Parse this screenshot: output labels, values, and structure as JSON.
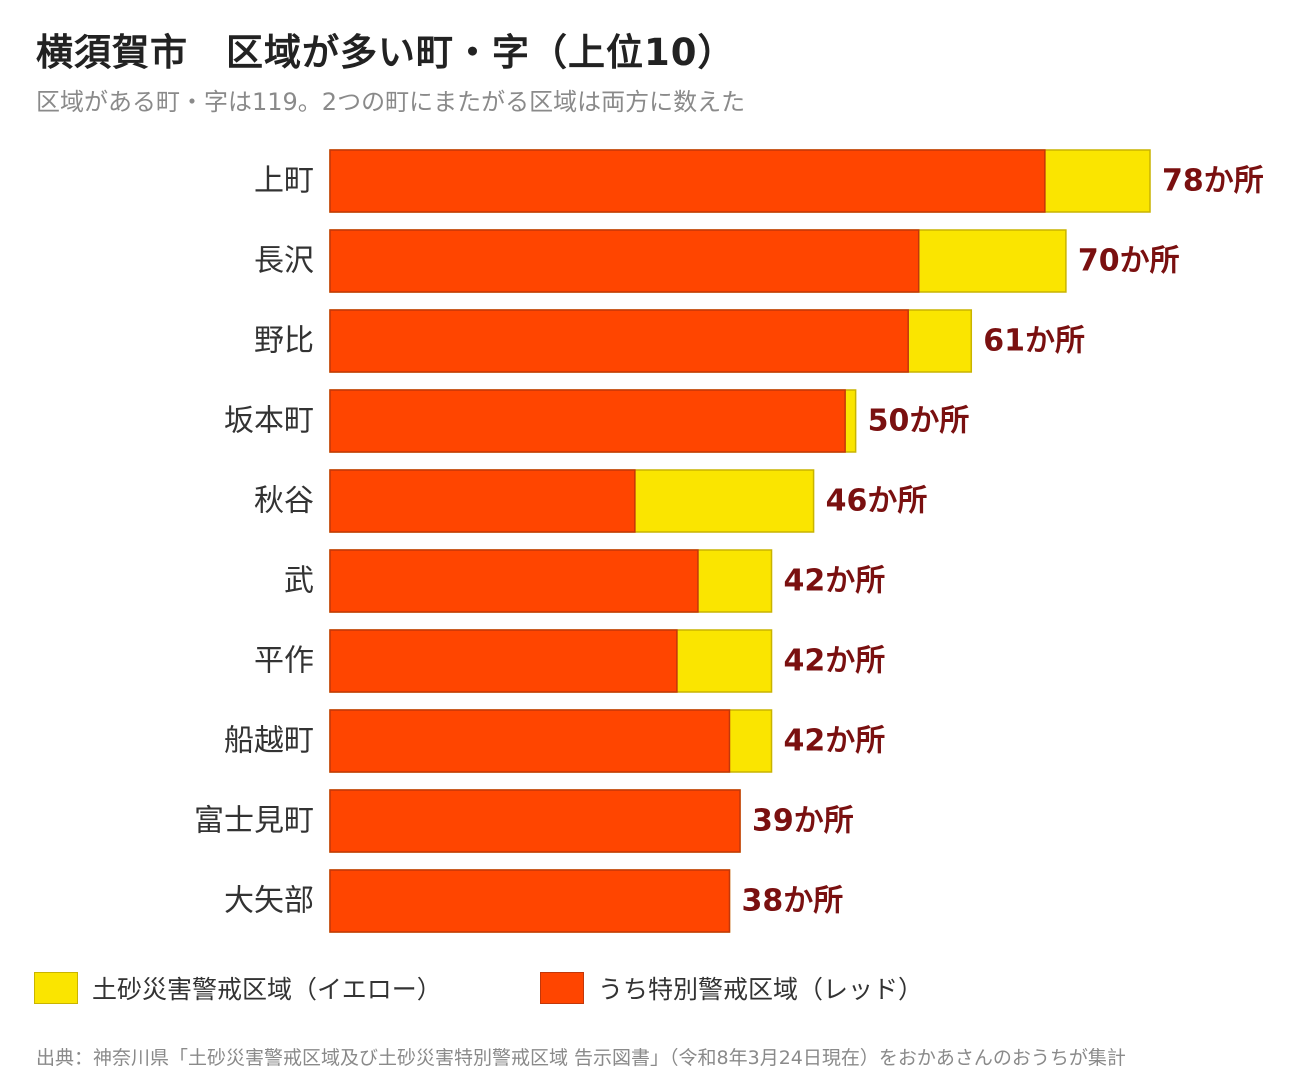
{
  "title": "横須賀市　区域が多い町・字（上位10）",
  "subtitle": "区域がある町・字は119。2つの町にまたがる区域は両方に数えた",
  "legend": {
    "yellow": "土砂災害警戒区域（イエロー）",
    "red": "うち特別警戒区域（レッド）"
  },
  "source": "出典：神奈川県「土砂災害警戒区域及び土砂災害特別警戒区域 告示図書」（令和8年3月24日現在）をおかあさんのおうちが集計",
  "colors": {
    "yellow": "#FAE500",
    "yellow_border": "#C9B400",
    "red": "#FF4500",
    "red_border": "#C2370A",
    "value_label": "#7A1010",
    "category_label": "#333333"
  },
  "chart_data": {
    "type": "bar",
    "orientation": "horizontal",
    "stacked": true,
    "categories": [
      "上町",
      "長沢",
      "野比",
      "坂本町",
      "秋谷",
      "武",
      "平作",
      "船越町",
      "富士見町",
      "大矢部"
    ],
    "series": [
      {
        "name": "うち特別警戒区域（レッド）",
        "values": [
          68,
          56,
          55,
          49,
          29,
          35,
          33,
          38,
          39,
          38
        ]
      },
      {
        "name": "土砂災害警戒区域（イエロー）",
        "values": [
          10,
          14,
          6,
          1,
          17,
          7,
          9,
          4,
          0,
          0
        ]
      }
    ],
    "totals": [
      78,
      70,
      61,
      50,
      46,
      42,
      42,
      42,
      39,
      38
    ],
    "total_labels": [
      "78か所",
      "70か所",
      "61か所",
      "50か所",
      "46か所",
      "42か所",
      "42か所",
      "42か所",
      "39か所",
      "38か所"
    ],
    "xlim": [
      0,
      78
    ],
    "grid": false,
    "legend_position": "bottom"
  }
}
